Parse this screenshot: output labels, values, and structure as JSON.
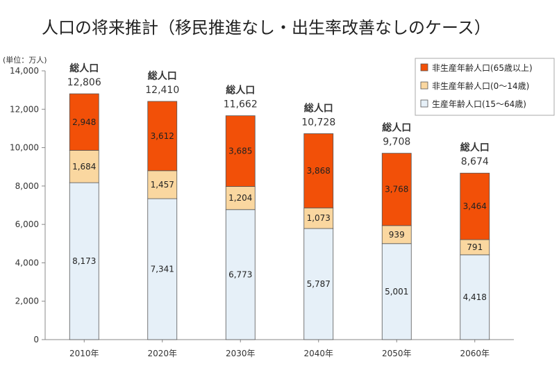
{
  "chart_data": {
    "type": "bar",
    "stacked": true,
    "title": "人口の将来推計（移民推進なし・出生率改善なしのケース）",
    "unit_label": "(単位：万人)",
    "categories": [
      "2010年",
      "2020年",
      "2030年",
      "2040年",
      "2050年",
      "2060年"
    ],
    "series": [
      {
        "name": "生産年齢人口(15～64歳)",
        "values": [
          8173,
          7341,
          6773,
          5787,
          5001,
          4418
        ],
        "color": "#e6f0f8"
      },
      {
        "name": "非生産年齢人口(0～14歳)",
        "values": [
          1684,
          1457,
          1204,
          1073,
          939,
          791
        ],
        "color": "#fad7a0"
      },
      {
        "name": "非生産年齢人口(65歳以上)",
        "values": [
          2948,
          3612,
          3685,
          3868,
          3768,
          3464
        ],
        "color": "#f25008"
      }
    ],
    "value_labels": {
      "working_age": [
        "8,173",
        "7,341",
        "6,773",
        "5,787",
        "5,001",
        "4,418"
      ],
      "children": [
        "1,684",
        "1,457",
        "1,204",
        "1,073",
        "939",
        "791"
      ],
      "elderly": [
        "2,948",
        "3,612",
        "3,685",
        "3,868",
        "3,768",
        "3,464"
      ]
    },
    "totals_label": "総人口",
    "totals": [
      12806,
      12410,
      11662,
      10728,
      9708,
      8674
    ],
    "totals_text": [
      "12,806",
      "12,410",
      "11,662",
      "10,728",
      "9,708",
      "8,674"
    ],
    "legend_order": [
      "非生産年齢人口(65歳以上)",
      "非生産年齢人口(0～14歳)",
      "生産年齢人口(15～64歳)"
    ],
    "legend_placement": "top-right",
    "ylim": [
      0,
      14000
    ],
    "yticks": [
      0,
      2000,
      4000,
      6000,
      8000,
      10000,
      12000,
      14000
    ],
    "ytick_labels": [
      "0",
      "2,000",
      "4,000",
      "6,000",
      "8,000",
      "10,000",
      "12,000",
      "14,000"
    ],
    "grid": false
  }
}
